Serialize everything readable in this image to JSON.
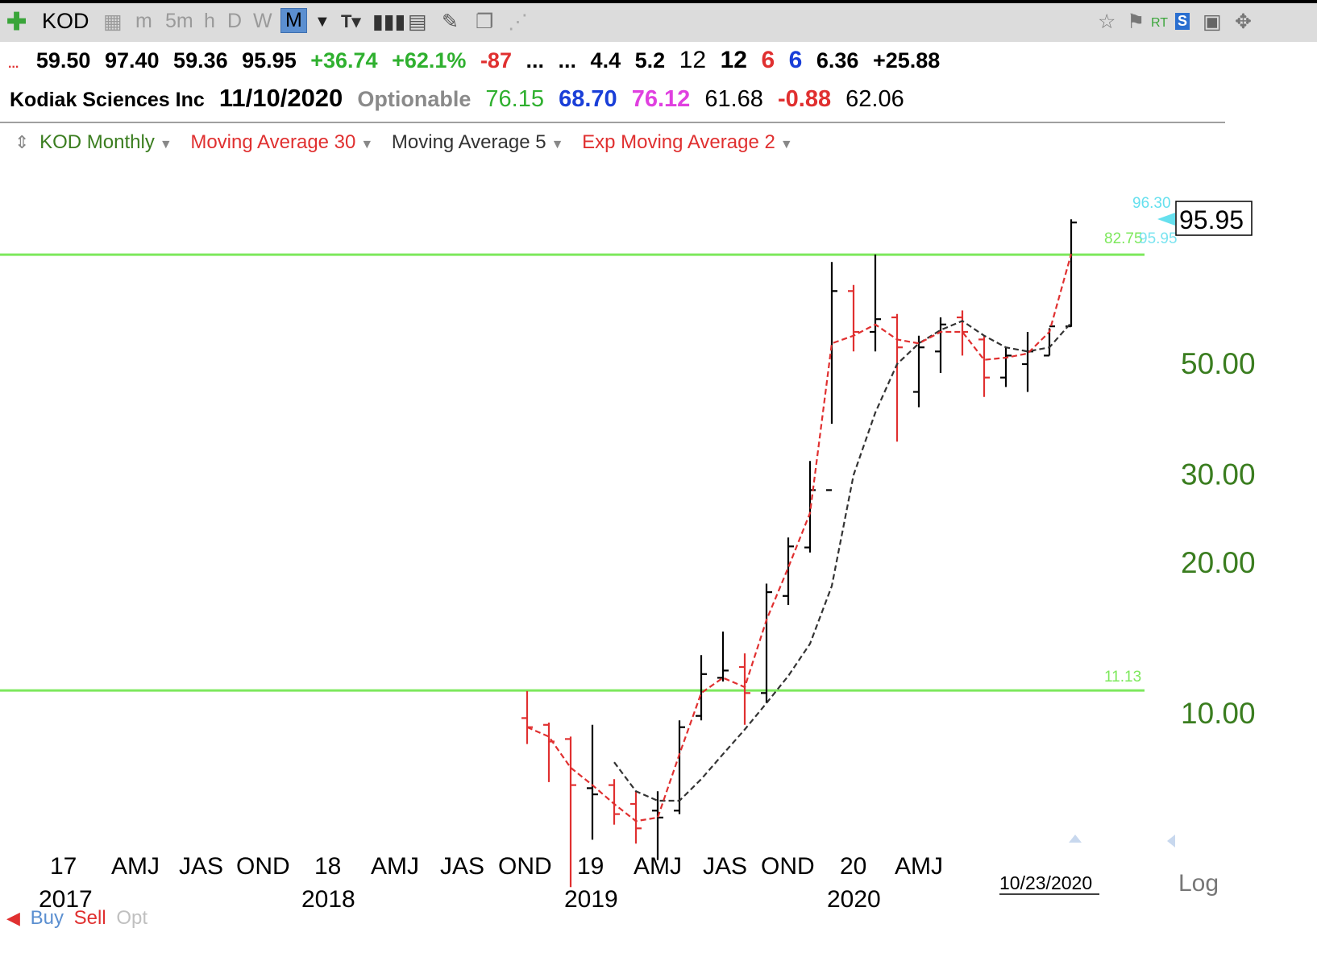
{
  "toolbar": {
    "symbol": "KOD",
    "intervals": [
      "m",
      "5m",
      "h",
      "D",
      "W",
      "M"
    ],
    "selected_interval": "M",
    "icons": [
      "add-symbol-icon",
      "print-icon",
      "chart-type-icon",
      "bar-chart-icon",
      "table-icon",
      "pencil-icon",
      "layers-icon",
      "share-icon",
      "star-icon",
      "flag-icon",
      "rt-icon",
      "s-icon",
      "save-icon",
      "move-icon"
    ]
  },
  "quote": {
    "open": "59.50",
    "high": "97.40",
    "low": "59.36",
    "close": "95.95",
    "change": "+36.74",
    "change_pct": "+62.1%",
    "value1": "-87",
    "value2": "...",
    "value3": "...",
    "value4": "4.4",
    "value5": "5.2",
    "value6": "12",
    "value7": "12",
    "value8": "6",
    "value9": "6",
    "value10": "6.36",
    "value11": "+25.88"
  },
  "info": {
    "company": "Kodiak Sciences Inc",
    "date": "11/10/2020",
    "optionable": "Optionable",
    "v1": "76.15",
    "v2": "68.70",
    "v3": "76.12",
    "v4": "61.68",
    "v5": "-0.88",
    "v6": "62.06"
  },
  "legend": {
    "main": "KOD Monthly",
    "ma30": "Moving Average 30",
    "ma5": "Moving Average 5",
    "ema2": "Exp Moving Average 2"
  },
  "colors": {
    "green_line": "#7de85c",
    "axis_green": "#3a7d1f",
    "up_bar": "#000000",
    "down_bar": "#e03030",
    "ma5": "#333333",
    "ema2": "#e03030",
    "cyan": "#66e0ee"
  },
  "chart_data": {
    "type": "ohlc-bar",
    "scale": "log",
    "price_label": "95.95",
    "price_labels_right": [
      "96.30",
      "82.75",
      "95.95",
      "11.13"
    ],
    "y_ticks": [
      10,
      20,
      30,
      50
    ],
    "y_tick_labels": [
      "10.00",
      "20.00",
      "30.00",
      "50.00"
    ],
    "horizontal_lines": [
      82.75,
      11.13
    ],
    "x_tick_labels": [
      "17",
      "AMJ",
      "JAS",
      "OND",
      "18",
      "AMJ",
      "JAS",
      "OND",
      "19",
      "AMJ",
      "JAS",
      "OND",
      "20",
      "AMJ"
    ],
    "year_labels": [
      "2017",
      "2018",
      "2019",
      "2020"
    ],
    "date_marker": "10/23/2020",
    "scale_label": "Log",
    "months": [
      "2018-10",
      "2018-11",
      "2018-12",
      "2019-01",
      "2019-02",
      "2019-03",
      "2019-04",
      "2019-05",
      "2019-06",
      "2019-07",
      "2019-08",
      "2019-09",
      "2019-10",
      "2019-11",
      "2019-12",
      "2020-01",
      "2020-02",
      "2020-03",
      "2020-04",
      "2020-05",
      "2020-06",
      "2020-07",
      "2020-08",
      "2020-09",
      "2020-10",
      "2020-11"
    ],
    "bars": [
      {
        "o": 9.8,
        "h": 11.1,
        "l": 8.7,
        "c": 9.4,
        "dir": "down"
      },
      {
        "o": 9.5,
        "h": 9.6,
        "l": 7.3,
        "c": 8.8,
        "dir": "down"
      },
      {
        "o": 8.9,
        "h": 9.0,
        "l": 4.5,
        "c": 7.2,
        "dir": "down"
      },
      {
        "o": 7.1,
        "h": 9.5,
        "l": 5.6,
        "c": 6.9,
        "dir": "up"
      },
      {
        "o": 7.2,
        "h": 7.4,
        "l": 6.0,
        "c": 6.3,
        "dir": "down"
      },
      {
        "o": 6.6,
        "h": 7.0,
        "l": 5.5,
        "c": 5.9,
        "dir": "down"
      },
      {
        "o": 6.4,
        "h": 7.0,
        "l": 5.1,
        "c": 6.2,
        "dir": "up"
      },
      {
        "o": 6.4,
        "h": 9.7,
        "l": 6.3,
        "c": 9.4,
        "dir": "up"
      },
      {
        "o": 9.9,
        "h": 13.1,
        "l": 9.7,
        "c": 12.0,
        "dir": "up"
      },
      {
        "o": 11.8,
        "h": 14.6,
        "l": 11.6,
        "c": 12.2,
        "dir": "up"
      },
      {
        "o": 12.4,
        "h": 13.2,
        "l": 9.5,
        "c": 11.0,
        "dir": "down"
      },
      {
        "o": 11.0,
        "h": 18.2,
        "l": 10.5,
        "c": 17.5,
        "dir": "up"
      },
      {
        "o": 17.2,
        "h": 22.5,
        "l": 16.5,
        "c": 21.6,
        "dir": "up"
      },
      {
        "o": 21.5,
        "h": 32.0,
        "l": 21.0,
        "c": 28.0,
        "dir": "up"
      },
      {
        "o": 28.0,
        "h": 80.0,
        "l": 38.0,
        "c": 70.0,
        "dir": "up"
      },
      {
        "o": 70.0,
        "h": 72.0,
        "l": 53.0,
        "c": 58.0,
        "dir": "down"
      },
      {
        "o": 58.0,
        "h": 82.8,
        "l": 53.0,
        "c": 61.5,
        "dir": "up"
      },
      {
        "o": 62.0,
        "h": 63.0,
        "l": 35.0,
        "c": 54.0,
        "dir": "down"
      },
      {
        "o": 44.0,
        "h": 57.0,
        "l": 41.0,
        "c": 54.0,
        "dir": "up"
      },
      {
        "o": 53.0,
        "h": 62.0,
        "l": 48.0,
        "c": 60.0,
        "dir": "up"
      },
      {
        "o": 62.0,
        "h": 64.0,
        "l": 52.0,
        "c": 58.0,
        "dir": "down"
      },
      {
        "o": 56.0,
        "h": 57.0,
        "l": 43.0,
        "c": 47.0,
        "dir": "down"
      },
      {
        "o": 47.0,
        "h": 54.0,
        "l": 45.0,
        "c": 52.0,
        "dir": "up"
      },
      {
        "o": 50.0,
        "h": 58.0,
        "l": 44.0,
        "c": 53.0,
        "dir": "up"
      },
      {
        "o": 52.0,
        "h": 59.0,
        "l": 52.0,
        "c": 59.5,
        "dir": "up"
      },
      {
        "o": 59.5,
        "h": 97.4,
        "l": 59.36,
        "c": 95.95,
        "dir": "up"
      }
    ],
    "ema2": [
      9.4,
      9.0,
      7.8,
      7.2,
      6.6,
      6.1,
      6.2,
      8.3,
      11.0,
      11.8,
      11.3,
      15.4,
      19.6,
      25.2,
      55.0,
      57.0,
      60.0,
      56.0,
      55.0,
      58.0,
      58.0,
      51.0,
      51.5,
      52.5,
      58.0,
      83.0
    ],
    "ma5": [
      null,
      null,
      null,
      null,
      8.0,
      7.0,
      6.7,
      6.7,
      7.4,
      8.3,
      9.3,
      10.5,
      11.9,
      13.8,
      18.0,
      30.0,
      40.0,
      50.0,
      55.0,
      58.5,
      61.0,
      57.0,
      54.0,
      53.0,
      54.0,
      60.5
    ]
  }
}
